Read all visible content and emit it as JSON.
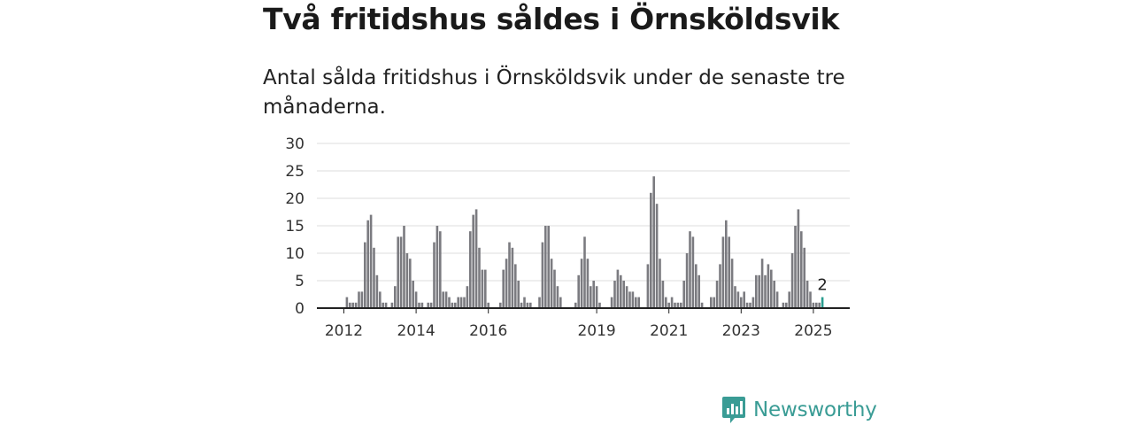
{
  "header": {
    "title": "Två fritidshus såldes i Örnsköldsvik",
    "subtitle": "Antal sålda fritidshus i Örnsköldsvik under de senaste tre månaderna."
  },
  "brand": {
    "name": "Newsworthy",
    "icon": "newsworthy-logo-icon",
    "color": "#3a9c95"
  },
  "colors": {
    "bar": "#7b7b80",
    "highlight": "#2a9d8f",
    "grid": "#dddddd",
    "axis": "#222222"
  },
  "chart_data": {
    "type": "bar",
    "x_start": "2012-01",
    "x_end": "2025-04",
    "ylim": [
      0,
      30
    ],
    "yticks": [
      0,
      5,
      10,
      15,
      20,
      25,
      30
    ],
    "xticks": [
      "2012",
      "2014",
      "2016",
      "2019",
      "2021",
      "2023",
      "2025"
    ],
    "grid": true,
    "highlight_last": true,
    "highlight_label": "2",
    "values": [
      0,
      2,
      1,
      1,
      1,
      3,
      3,
      12,
      16,
      17,
      11,
      6,
      3,
      1,
      1,
      0,
      1,
      4,
      13,
      13,
      15,
      10,
      9,
      5,
      3,
      1,
      1,
      0,
      1,
      1,
      12,
      15,
      14,
      3,
      3,
      2,
      1,
      1,
      2,
      2,
      2,
      4,
      14,
      17,
      18,
      11,
      7,
      7,
      1,
      0,
      0,
      0,
      1,
      7,
      9,
      12,
      11,
      8,
      5,
      1,
      2,
      1,
      1,
      0,
      0,
      2,
      12,
      15,
      15,
      9,
      7,
      4,
      2,
      0,
      0,
      0,
      0,
      1,
      6,
      9,
      13,
      9,
      4,
      5,
      4,
      1,
      0,
      0,
      0,
      2,
      5,
      7,
      6,
      5,
      4,
      3,
      3,
      2,
      2,
      0,
      0,
      8,
      21,
      24,
      19,
      9,
      5,
      2,
      1,
      2,
      1,
      1,
      1,
      5,
      10,
      14,
      13,
      8,
      6,
      1,
      0,
      0,
      2,
      2,
      5,
      8,
      13,
      16,
      13,
      9,
      4,
      3,
      2,
      3,
      1,
      1,
      2,
      6,
      6,
      9,
      6,
      8,
      7,
      5,
      3,
      0,
      1,
      1,
      3,
      10,
      15,
      18,
      14,
      11,
      5,
      3,
      1,
      1,
      1,
      2
    ]
  }
}
